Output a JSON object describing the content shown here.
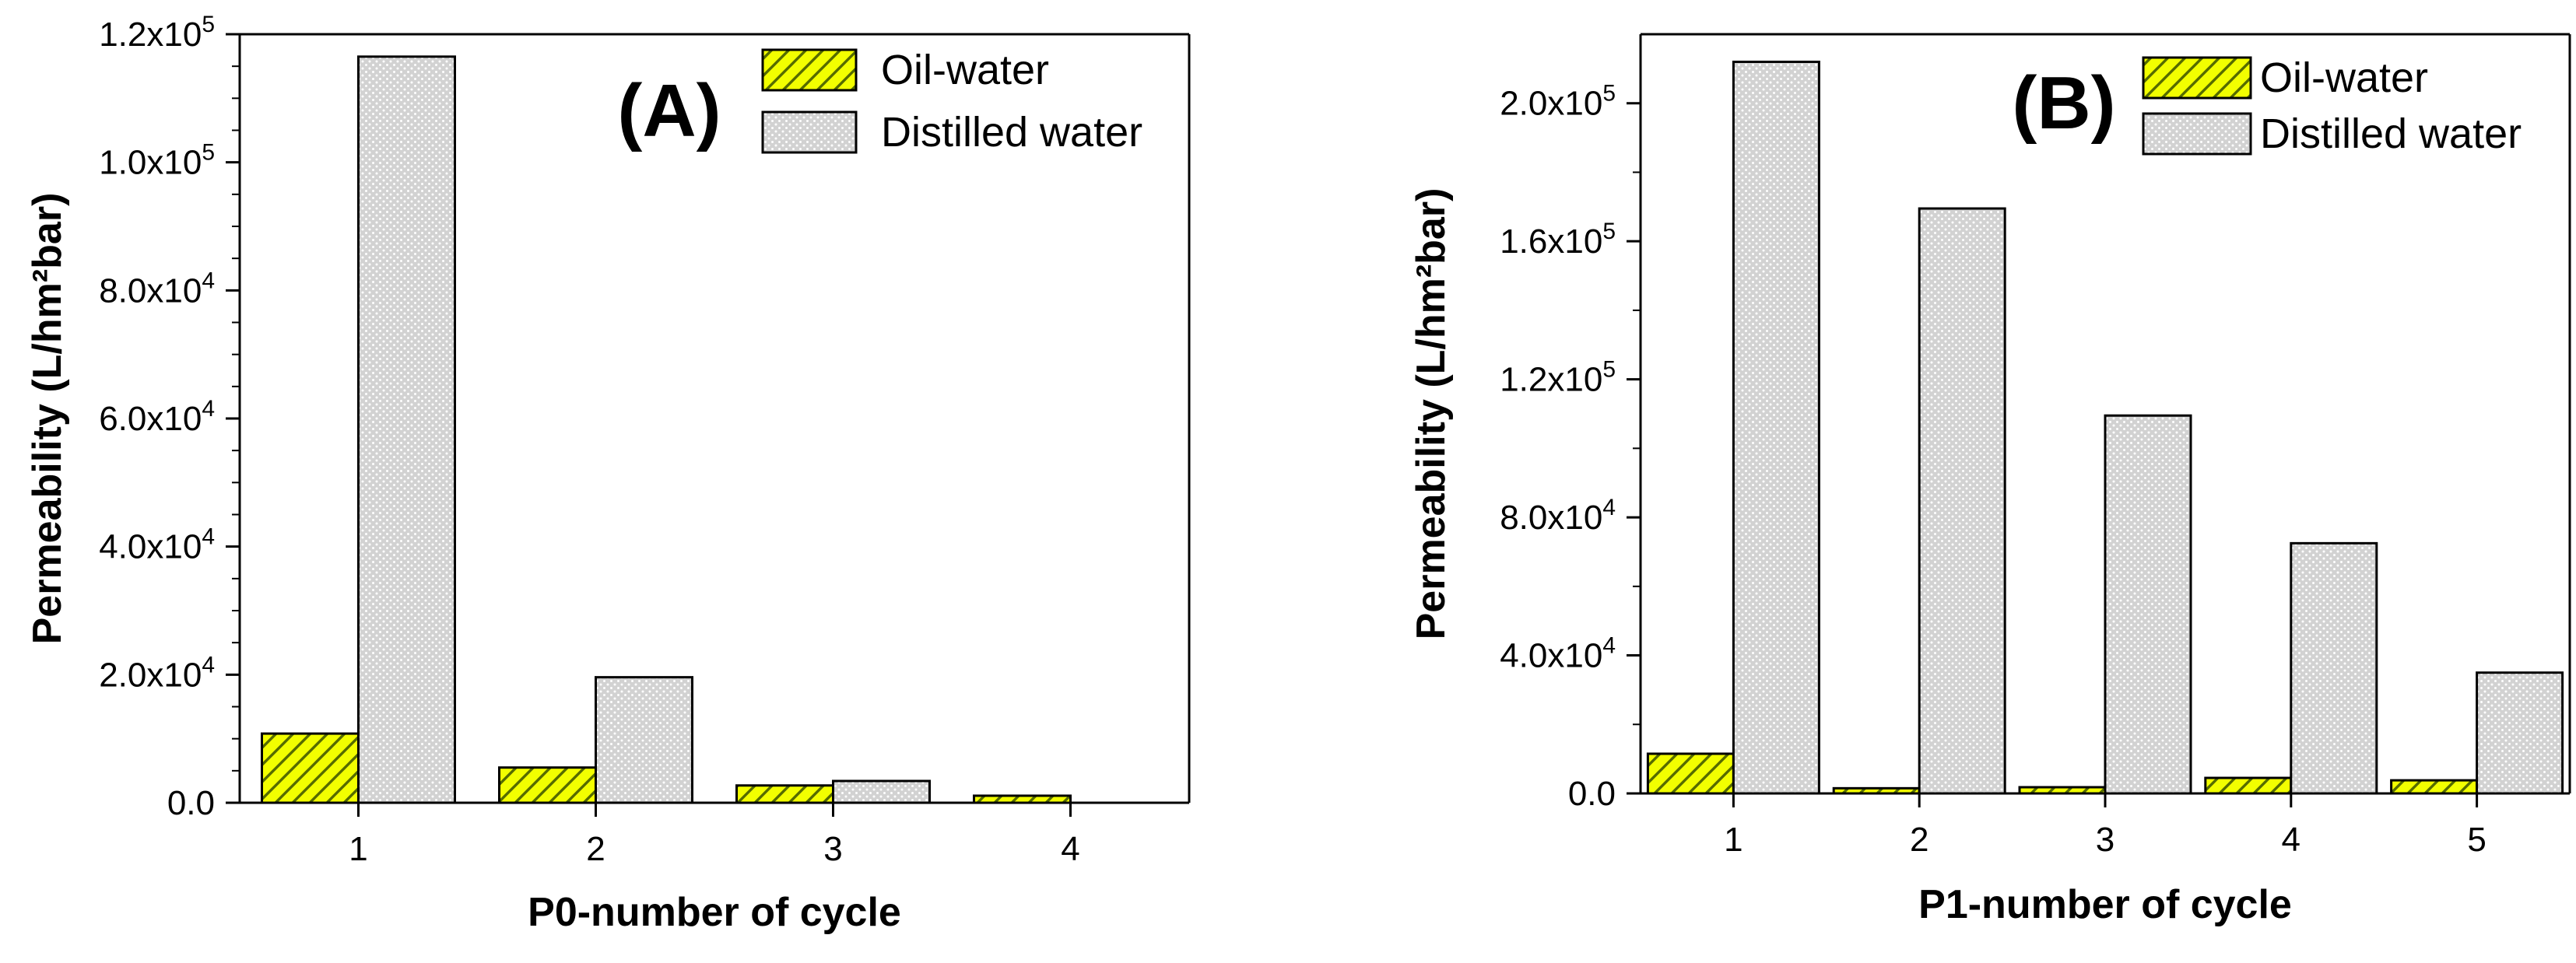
{
  "colors": {
    "oil_water": "#f2ff00",
    "oil_water_hatch": "#556b00",
    "distilled_water": "#d2d2d2",
    "distilled_water_dot": "#ffffff",
    "axis": "#000000"
  },
  "chart_data": [
    {
      "type": "bar",
      "panel_label": "(A)",
      "categories": [
        "1",
        "2",
        "3",
        "4"
      ],
      "series": [
        {
          "name": "Oil-water",
          "values": [
            10800,
            5500,
            2700,
            1100
          ]
        },
        {
          "name": "Distilled water",
          "values": [
            116500,
            19600,
            3400,
            0
          ]
        }
      ],
      "xlabel": "P0-number of cycle",
      "ylabel": "Permeability (L/hm²bar)",
      "ylim": [
        0,
        120000
      ],
      "yticks": [
        {
          "value": 0,
          "mantissa": "0.0",
          "exp": ""
        },
        {
          "value": 20000,
          "mantissa": "2.0x10",
          "exp": "4"
        },
        {
          "value": 40000,
          "mantissa": "4.0x10",
          "exp": "4"
        },
        {
          "value": 60000,
          "mantissa": "6.0x10",
          "exp": "4"
        },
        {
          "value": 80000,
          "mantissa": "8.0x10",
          "exp": "4"
        },
        {
          "value": 100000,
          "mantissa": "1.0x10",
          "exp": "5"
        },
        {
          "value": 120000,
          "mantissa": "1.2x10",
          "exp": "5"
        }
      ],
      "legend_position": "top-right",
      "grid": false
    },
    {
      "type": "bar",
      "panel_label": "(B)",
      "categories": [
        "1",
        "2",
        "3",
        "4",
        "5"
      ],
      "series": [
        {
          "name": "Oil-water",
          "values": [
            11500,
            1500,
            1800,
            4500,
            3800
          ]
        },
        {
          "name": "Distilled water",
          "values": [
            212000,
            169500,
            109500,
            72500,
            35000
          ]
        }
      ],
      "xlabel": "P1-number of cycle",
      "ylabel": "Permeability (L/hm²bar)",
      "ylim": [
        0,
        220000
      ],
      "yticks": [
        {
          "value": 0,
          "mantissa": "0.0",
          "exp": ""
        },
        {
          "value": 40000,
          "mantissa": "4.0x10",
          "exp": "4"
        },
        {
          "value": 80000,
          "mantissa": "8.0x10",
          "exp": "4"
        },
        {
          "value": 120000,
          "mantissa": "1.2x10",
          "exp": "5"
        },
        {
          "value": 160000,
          "mantissa": "1.6x10",
          "exp": "5"
        },
        {
          "value": 200000,
          "mantissa": "2.0x10",
          "exp": "5"
        }
      ],
      "legend_position": "top-right",
      "grid": false
    }
  ]
}
